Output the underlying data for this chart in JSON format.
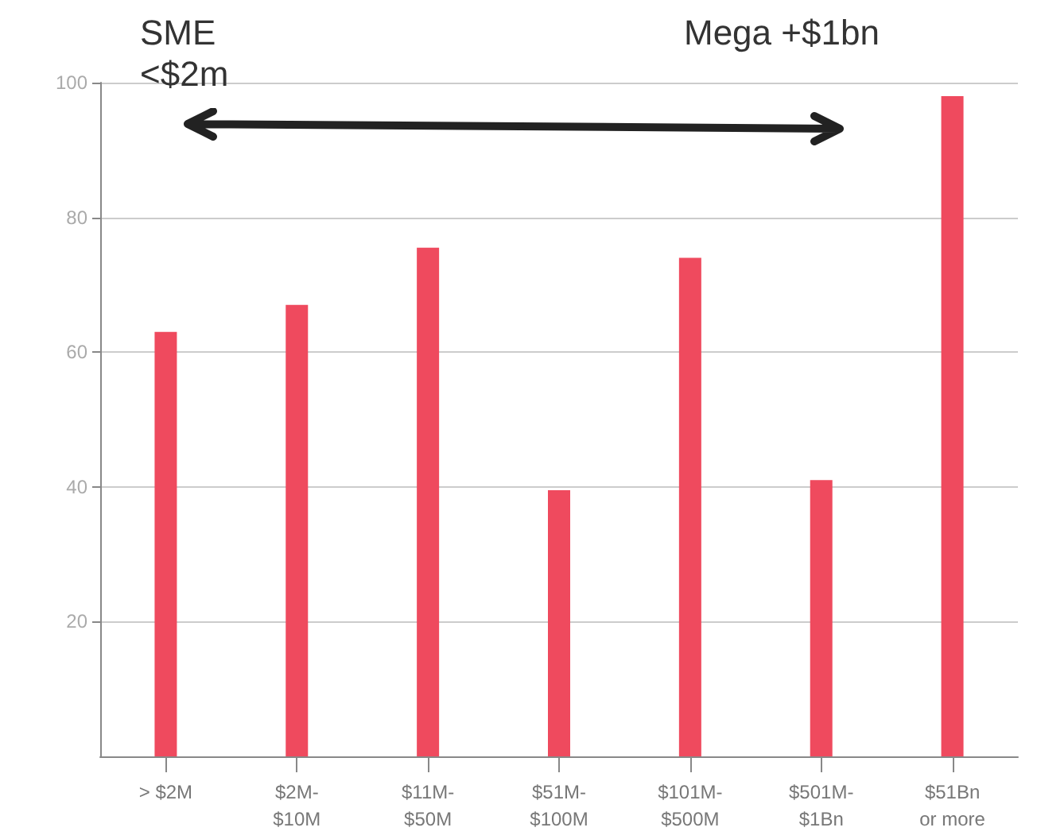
{
  "chart_data": {
    "type": "bar",
    "categories": [
      "> $2M",
      "$2M-\n$10M",
      "$11M-\n$50M",
      "$51M-\n$100M",
      "$101M-\n$500M",
      "$501M-\n$1Bn",
      "$51Bn\nor more"
    ],
    "values": [
      63,
      67,
      75.5,
      39.5,
      74,
      41,
      98
    ],
    "color": "#ef4a5e",
    "ylim": [
      0,
      100
    ],
    "yticks": [
      20,
      40,
      60,
      80,
      100
    ],
    "grid": "y",
    "annotations": [
      "SME <$2m",
      "Mega +$1bn"
    ]
  }
}
